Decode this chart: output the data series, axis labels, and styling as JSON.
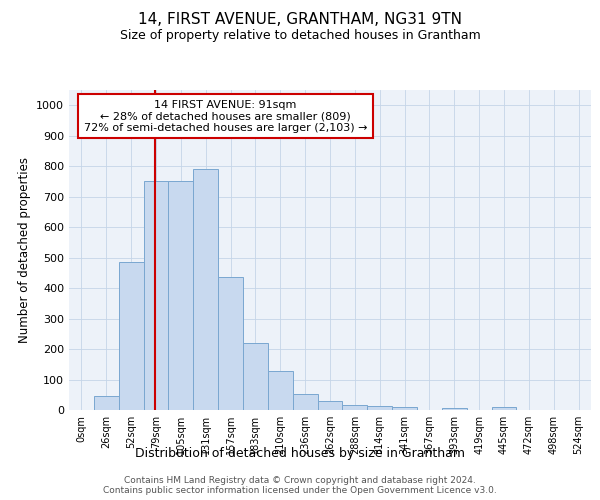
{
  "title1": "14, FIRST AVENUE, GRANTHAM, NG31 9TN",
  "title2": "Size of property relative to detached houses in Grantham",
  "xlabel": "Distribution of detached houses by size in Grantham",
  "ylabel": "Number of detached properties",
  "categories": [
    "0sqm",
    "26sqm",
    "52sqm",
    "79sqm",
    "105sqm",
    "131sqm",
    "157sqm",
    "183sqm",
    "210sqm",
    "236sqm",
    "262sqm",
    "288sqm",
    "314sqm",
    "341sqm",
    "367sqm",
    "393sqm",
    "419sqm",
    "445sqm",
    "472sqm",
    "498sqm",
    "524sqm"
  ],
  "values": [
    0,
    45,
    485,
    750,
    750,
    790,
    435,
    220,
    128,
    52,
    30,
    18,
    12,
    10,
    0,
    8,
    0,
    10,
    0,
    0,
    0
  ],
  "bar_color": "#c8d9ef",
  "bar_edge_color": "#7aa7d0",
  "vline_color": "#cc0000",
  "annotation_box_color": "#ffffff",
  "annotation_box_edge": "#cc0000",
  "property_line_label": "14 FIRST AVENUE: 91sqm",
  "annotation_line1": "← 28% of detached houses are smaller (809)",
  "annotation_line2": "72% of semi-detached houses are larger (2,103) →",
  "ylim": [
    0,
    1050
  ],
  "yticks": [
    0,
    100,
    200,
    300,
    400,
    500,
    600,
    700,
    800,
    900,
    1000
  ],
  "grid_color": "#c5d5e8",
  "bg_color": "#edf2f9",
  "footer1": "Contains HM Land Registry data © Crown copyright and database right 2024.",
  "footer2": "Contains public sector information licensed under the Open Government Licence v3.0."
}
